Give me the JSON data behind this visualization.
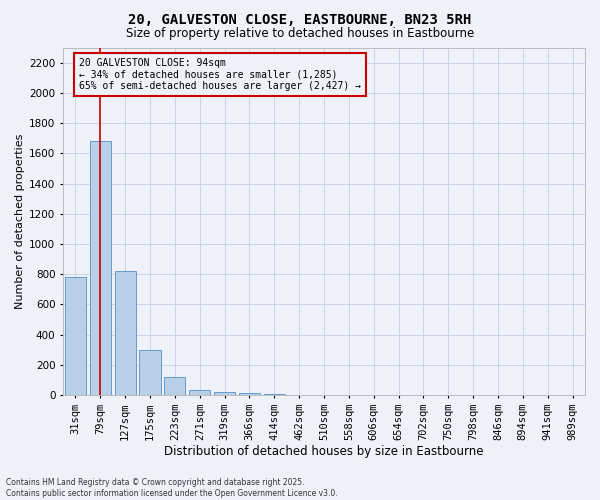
{
  "title": "20, GALVESTON CLOSE, EASTBOURNE, BN23 5RH",
  "subtitle": "Size of property relative to detached houses in Eastbourne",
  "xlabel": "Distribution of detached houses by size in Eastbourne",
  "ylabel": "Number of detached properties",
  "categories": [
    "31sqm",
    "79sqm",
    "127sqm",
    "175sqm",
    "223sqm",
    "271sqm",
    "319sqm",
    "366sqm",
    "414sqm",
    "462sqm",
    "510sqm",
    "558sqm",
    "606sqm",
    "654sqm",
    "702sqm",
    "750sqm",
    "798sqm",
    "846sqm",
    "894sqm",
    "941sqm",
    "989sqm"
  ],
  "values": [
    780,
    1680,
    820,
    300,
    120,
    35,
    20,
    15,
    10,
    0,
    0,
    0,
    0,
    0,
    0,
    0,
    0,
    0,
    0,
    0,
    0
  ],
  "bar_color": "#b8cfe8",
  "bar_edge_color": "#6699cc",
  "grid_color": "#c8d4e8",
  "background_color": "#eef2f8",
  "vline_x_index": 1,
  "vline_color": "#cc0000",
  "annotation_text": "20 GALVESTON CLOSE: 94sqm\n← 34% of detached houses are smaller (1,285)\n65% of semi-detached houses are larger (2,427) →",
  "annotation_box_color": "#cc0000",
  "footer": "Contains HM Land Registry data © Crown copyright and database right 2025.\nContains public sector information licensed under the Open Government Licence v3.0.",
  "ylim": [
    0,
    2300
  ],
  "yticks": [
    0,
    200,
    400,
    600,
    800,
    1000,
    1200,
    1400,
    1600,
    1800,
    2000,
    2200
  ],
  "title_fontsize": 10,
  "subtitle_fontsize": 8.5,
  "xlabel_fontsize": 8.5,
  "ylabel_fontsize": 8,
  "tick_fontsize": 7.5,
  "annotation_fontsize": 7,
  "footer_fontsize": 5.5
}
